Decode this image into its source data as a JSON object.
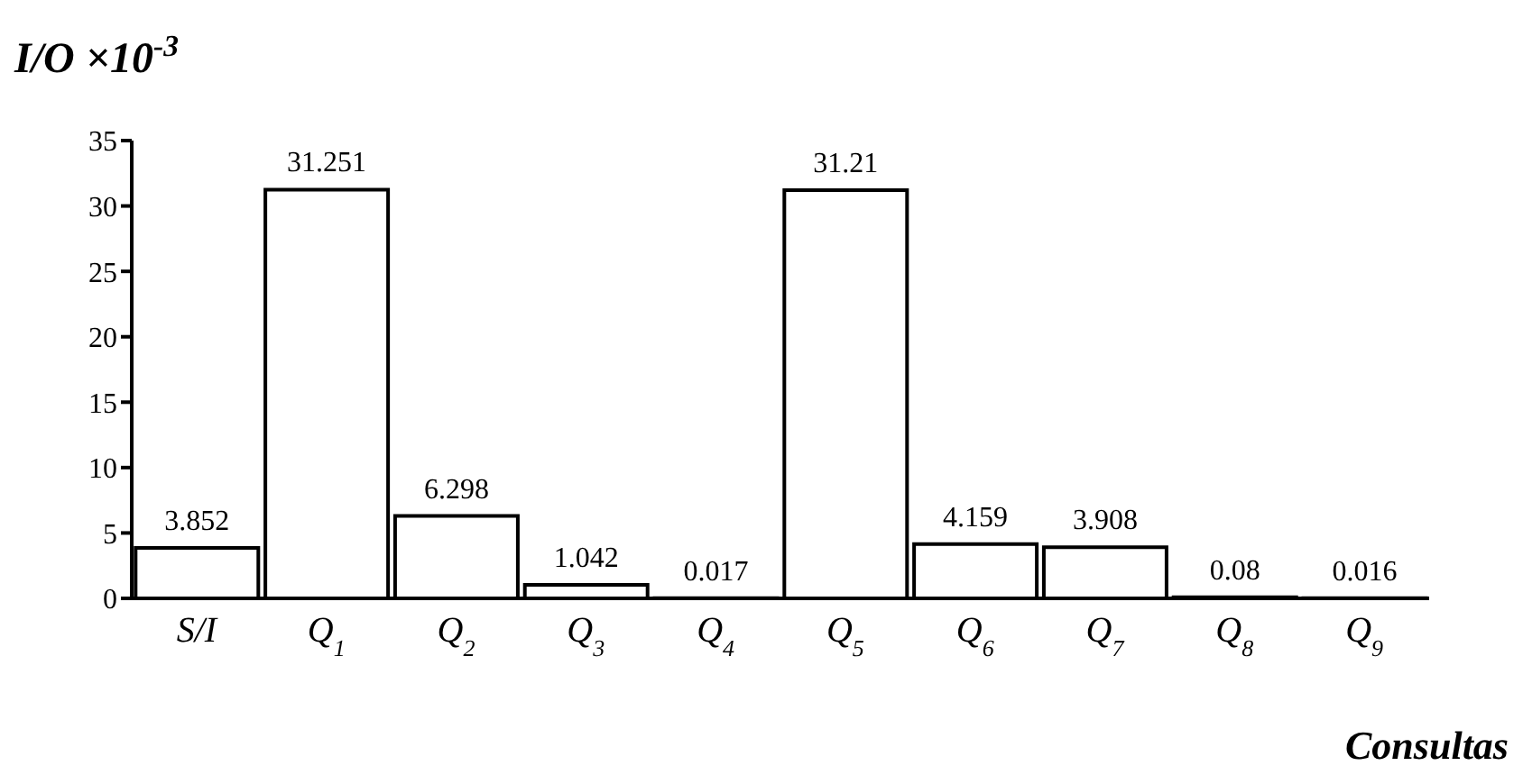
{
  "chart_data": {
    "type": "bar",
    "ylabel": "I/O ×10$^{-3}$",
    "xlabel": "Consultas",
    "categories": [
      "S/I",
      "Q$_{1}$",
      "Q$_{2}$",
      "Q$_{3}$",
      "Q$_{4}$",
      "Q$_{5}$",
      "Q$_{6}$",
      "Q$_{7}$",
      "Q$_{8}$",
      "Q$_{9}$"
    ],
    "values": [
      3.852,
      31.251,
      6.298,
      1.042,
      0.017,
      31.21,
      4.159,
      3.908,
      0.08,
      0.016
    ],
    "color": "#ffffff",
    "ylim": [
      0,
      35
    ],
    "yticks": [
      0,
      5,
      10,
      15,
      20,
      25,
      30,
      35
    ],
    "data_labels": true,
    "grid": false,
    "legend": false
  }
}
